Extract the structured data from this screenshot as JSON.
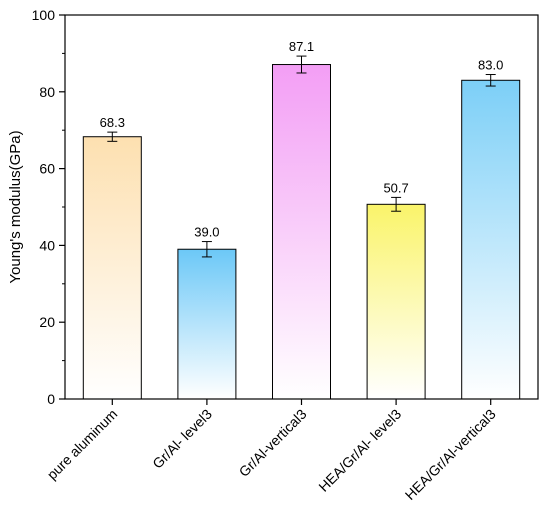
{
  "chart_data": {
    "type": "bar",
    "title": "",
    "xlabel": "",
    "ylabel": "Young's modulus(GPa)",
    "ylim": [
      0,
      100
    ],
    "yticks": [
      0,
      20,
      40,
      60,
      80,
      100
    ],
    "grid": false,
    "categories": [
      "pure aluminum",
      "Gr/Al- level3",
      "Gr/Al-vertical3",
      "HEA/Gr/Al- level3",
      "HEA/Gr/Al-vertical3"
    ],
    "values": [
      68.3,
      39.0,
      87.1,
      50.7,
      83.0
    ],
    "value_labels": [
      "68.3",
      "39.0",
      "87.1",
      "50.7",
      "83.0"
    ],
    "errors": [
      1.2,
      2.0,
      2.2,
      1.8,
      1.5
    ],
    "colors": [
      "#fde0b0",
      "#6cc8f7",
      "#f39ef5",
      "#faf46a",
      "#7ccff7"
    ]
  }
}
